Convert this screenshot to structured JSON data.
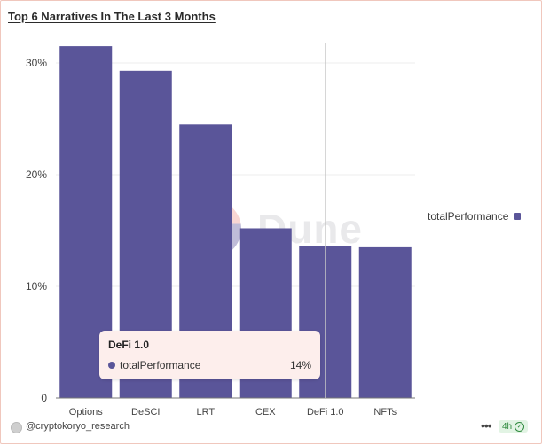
{
  "title": "Top 6 Narratives In The Last 3 Months",
  "chart_data": {
    "type": "bar",
    "title": "Top 6 Narratives In The Last 3 Months",
    "categories": [
      "Options",
      "DeSCI",
      "LRT",
      "CEX",
      "DeFi 1.0",
      "NFTs"
    ],
    "series": [
      {
        "name": "totalPerformance",
        "values": [
          31.5,
          29.3,
          24.5,
          15.2,
          13.6,
          13.5
        ]
      }
    ],
    "yticks": [
      {
        "value": 0,
        "label": "0"
      },
      {
        "value": 10,
        "label": "10%"
      },
      {
        "value": 20,
        "label": "20%"
      },
      {
        "value": 30,
        "label": "30%"
      }
    ],
    "ylim": [
      0,
      30
    ],
    "xlabel": "",
    "ylabel": "",
    "grid": true,
    "legend_position": "right",
    "bar_color": "#5a5599",
    "highlighted_category": "DeFi 1.0"
  },
  "legend": {
    "label": "totalPerformance",
    "color": "#5a5599"
  },
  "tooltip": {
    "category": "DeFi 1.0",
    "series_name": "totalPerformance",
    "value": "14%"
  },
  "watermark": {
    "text": "Dune"
  },
  "footer": {
    "author": "@cryptokoryo_research",
    "more_label": "•••",
    "age": "4h"
  }
}
